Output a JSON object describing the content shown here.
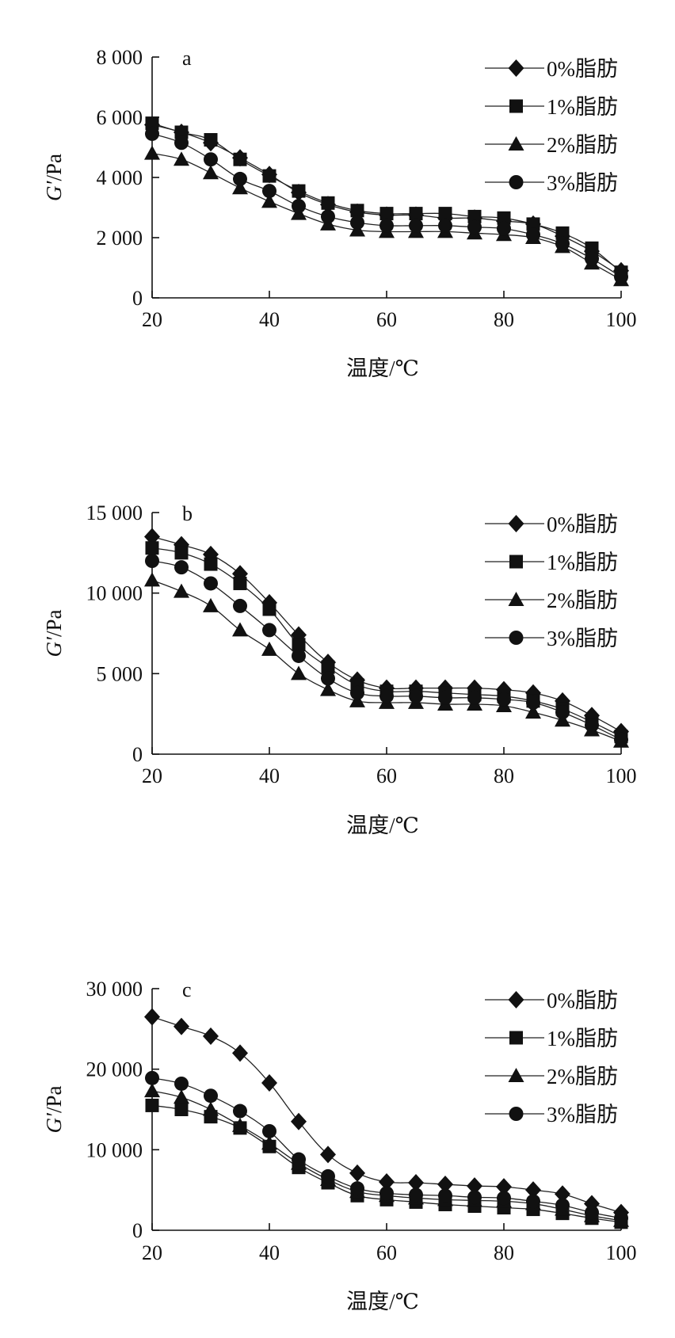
{
  "chart_data": [
    {
      "type": "line",
      "panel_label": "a",
      "ylabel_main": "G′",
      "ylabel_unit": "/Pa",
      "xlabel": "温度/℃",
      "xlim": [
        20,
        100
      ],
      "ylim": [
        0,
        8000
      ],
      "xticks": [
        20,
        40,
        60,
        80,
        100
      ],
      "yticks": [
        0,
        2000,
        4000,
        6000,
        8000
      ],
      "ytick_labels": [
        "0",
        "2 000",
        "4 000",
        "6 000",
        "8 000"
      ],
      "x": [
        20,
        25,
        30,
        35,
        40,
        45,
        50,
        55,
        60,
        65,
        70,
        75,
        80,
        85,
        90,
        95,
        100
      ],
      "series": [
        {
          "name": "0%脂肪",
          "marker": "diamond",
          "values": [
            5750,
            5500,
            5150,
            4650,
            4100,
            3500,
            3100,
            2850,
            2750,
            2750,
            2650,
            2650,
            2550,
            2450,
            2050,
            1550,
            900
          ]
        },
        {
          "name": "1%脂肪",
          "marker": "square",
          "values": [
            5800,
            5500,
            5250,
            4600,
            4050,
            3550,
            3150,
            2900,
            2800,
            2800,
            2800,
            2700,
            2650,
            2450,
            2150,
            1650,
            850
          ]
        },
        {
          "name": "2%脂肪",
          "marker": "triangle",
          "values": [
            4800,
            4600,
            4150,
            3650,
            3200,
            2800,
            2450,
            2250,
            2200,
            2200,
            2200,
            2150,
            2100,
            2000,
            1700,
            1150,
            600
          ]
        },
        {
          "name": "3%脂肪",
          "marker": "circle",
          "values": [
            5450,
            5150,
            4600,
            3950,
            3550,
            3050,
            2700,
            2500,
            2400,
            2400,
            2400,
            2350,
            2300,
            2100,
            1800,
            1300,
            700
          ]
        }
      ]
    },
    {
      "type": "line",
      "panel_label": "b",
      "ylabel_main": "G′",
      "ylabel_unit": "/Pa",
      "xlabel": "温度/℃",
      "xlim": [
        20,
        100
      ],
      "ylim": [
        0,
        15000
      ],
      "xticks": [
        20,
        40,
        60,
        80,
        100
      ],
      "yticks": [
        0,
        5000,
        10000,
        15000
      ],
      "ytick_labels": [
        "0",
        "5 000",
        "10 000",
        "15 000"
      ],
      "x": [
        20,
        25,
        30,
        35,
        40,
        45,
        50,
        55,
        60,
        65,
        70,
        75,
        80,
        85,
        90,
        95,
        100
      ],
      "series": [
        {
          "name": "0%脂肪",
          "marker": "diamond",
          "values": [
            13500,
            13000,
            12400,
            11200,
            9400,
            7400,
            5700,
            4600,
            4100,
            4100,
            4100,
            4100,
            4000,
            3800,
            3300,
            2400,
            1400
          ]
        },
        {
          "name": "1%脂肪",
          "marker": "square",
          "values": [
            12800,
            12500,
            11800,
            10600,
            9000,
            6800,
            5400,
            4300,
            3900,
            3900,
            3800,
            3700,
            3600,
            3300,
            2800,
            2000,
            1100
          ]
        },
        {
          "name": "2%脂肪",
          "marker": "triangle",
          "values": [
            10800,
            10100,
            9200,
            7700,
            6500,
            5000,
            4000,
            3300,
            3200,
            3200,
            3100,
            3100,
            3000,
            2600,
            2100,
            1500,
            800
          ]
        },
        {
          "name": "3%脂肪",
          "marker": "circle",
          "values": [
            12000,
            11600,
            10600,
            9200,
            7700,
            6100,
            4700,
            3800,
            3600,
            3600,
            3500,
            3500,
            3400,
            3200,
            2600,
            1800,
            900
          ]
        }
      ]
    },
    {
      "type": "line",
      "panel_label": "c",
      "ylabel_main": "G′",
      "ylabel_unit": "/Pa",
      "xlabel": "温度/℃",
      "xlim": [
        20,
        100
      ],
      "ylim": [
        0,
        30000
      ],
      "xticks": [
        20,
        40,
        60,
        80,
        100
      ],
      "yticks": [
        0,
        10000,
        20000,
        30000
      ],
      "ytick_labels": [
        "0",
        "10 000",
        "20 000",
        "30 000"
      ],
      "x": [
        20,
        25,
        30,
        35,
        40,
        45,
        50,
        55,
        60,
        65,
        70,
        75,
        80,
        85,
        90,
        95,
        100
      ],
      "series": [
        {
          "name": "0%脂肪",
          "marker": "diamond",
          "values": [
            26500,
            25300,
            24100,
            22000,
            18300,
            13500,
            9400,
            7100,
            6000,
            5900,
            5700,
            5500,
            5400,
            5000,
            4500,
            3300,
            2200
          ]
        },
        {
          "name": "1%脂肪",
          "marker": "square",
          "values": [
            15500,
            15000,
            14100,
            12700,
            10400,
            7800,
            5900,
            4300,
            3800,
            3500,
            3200,
            3000,
            2800,
            2600,
            2100,
            1500,
            1000
          ]
        },
        {
          "name": "2%脂肪",
          "marker": "triangle",
          "values": [
            17300,
            16500,
            15000,
            13000,
            10800,
            8300,
            6300,
            4800,
            4300,
            4000,
            3800,
            3700,
            3600,
            3300,
            2600,
            1800,
            1200
          ]
        },
        {
          "name": "3%脂肪",
          "marker": "circle",
          "values": [
            18900,
            18200,
            16700,
            14800,
            12300,
            8800,
            6700,
            5200,
            4600,
            4400,
            4300,
            4100,
            4000,
            3600,
            3100,
            2200,
            1500
          ]
        }
      ]
    }
  ]
}
